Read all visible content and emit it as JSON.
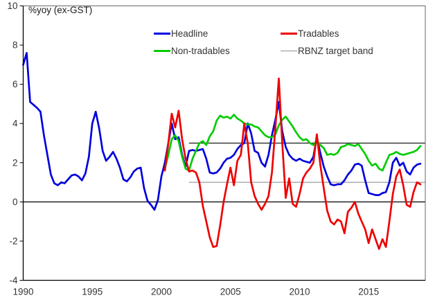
{
  "title": "%yoy (ex-GST)",
  "legend": [
    {
      "label": "Headline",
      "color": "#0000dd",
      "thickness": 3
    },
    {
      "label": "Tradables",
      "color": "#ee0000",
      "thickness": 3
    },
    {
      "label": "Non-tradables",
      "color": "#00cc00",
      "thickness": 3
    },
    {
      "label": "RBNZ target band",
      "color": "#909090",
      "thickness": 1
    }
  ],
  "chart_data": {
    "type": "line",
    "title": "%yoy (ex-GST)",
    "xlabel": "",
    "ylabel": "%yoy (ex-GST)",
    "xlim": [
      1990,
      2019.1
    ],
    "ylim": [
      -4,
      10
    ],
    "x_ticks": [
      1990,
      1995,
      2000,
      2005,
      2010,
      2015
    ],
    "y_ticks": [
      10,
      8,
      6,
      4,
      2,
      0,
      -2,
      -4
    ],
    "frequency": "quarterly",
    "grid": false,
    "legend_position": "top-inside",
    "reference_lines": [
      {
        "name": "zero-line",
        "value": 0,
        "from": 1990,
        "color": "#000000",
        "width": 1.2
      },
      {
        "name": "rbnz-target-upper",
        "value": 3,
        "from": 2002,
        "color": "#1a1a1a",
        "width": 1.2
      },
      {
        "name": "rbnz-target-lower",
        "value": 1,
        "from": 2002,
        "color": "#909090",
        "width": 1.2
      }
    ],
    "series": [
      {
        "name": "Headline",
        "color": "#0000dd",
        "start": 1990.0,
        "step": 0.25,
        "values": [
          7.0,
          7.6,
          5.1,
          4.95,
          4.8,
          4.6,
          3.4,
          2.4,
          1.4,
          0.95,
          0.85,
          1.0,
          0.95,
          1.15,
          1.35,
          1.4,
          1.3,
          1.1,
          1.45,
          2.3,
          4.0,
          4.6,
          3.75,
          2.6,
          2.1,
          2.3,
          2.55,
          2.2,
          1.75,
          1.15,
          1.05,
          1.25,
          1.55,
          1.7,
          1.75,
          0.7,
          0.05,
          -0.15,
          -0.4,
          0.1,
          1.3,
          2.0,
          3.0,
          4.0,
          3.2,
          3.3,
          2.4,
          1.8,
          2.6,
          2.65,
          2.6,
          2.65,
          2.7,
          2.2,
          1.5,
          1.45,
          1.5,
          1.7,
          2.0,
          2.2,
          2.25,
          2.4,
          2.7,
          2.9,
          3.0,
          4.0,
          3.5,
          2.6,
          2.5,
          2.0,
          1.8,
          2.4,
          3.4,
          4.2,
          5.1,
          3.6,
          2.8,
          2.4,
          2.2,
          2.1,
          2.2,
          2.1,
          2.05,
          2.0,
          2.3,
          3.3,
          2.5,
          1.8,
          1.3,
          0.9,
          0.85,
          0.9,
          0.9,
          1.1,
          1.4,
          1.6,
          1.9,
          1.95,
          1.85,
          1.1,
          0.45,
          0.4,
          0.35,
          0.35,
          0.45,
          0.5,
          1.0,
          2.0,
          2.25,
          1.85,
          2.0,
          1.55,
          1.4,
          1.75,
          1.9,
          1.95
        ]
      },
      {
        "name": "Non-tradables",
        "color": "#00cc00",
        "start": 2000.25,
        "step": 0.25,
        "values": [
          1.7,
          2.4,
          3.2,
          3.4,
          3.1,
          2.3,
          1.7,
          1.6,
          2.2,
          2.6,
          3.0,
          3.1,
          2.9,
          3.35,
          3.6,
          4.15,
          4.4,
          4.3,
          4.35,
          4.25,
          4.45,
          4.25,
          4.15,
          4.0,
          3.95,
          3.95,
          3.85,
          3.8,
          3.6,
          3.4,
          3.3,
          3.3,
          3.45,
          3.9,
          4.2,
          4.35,
          4.1,
          3.85,
          3.55,
          3.3,
          3.15,
          3.2,
          3.0,
          2.9,
          3.15,
          2.9,
          2.75,
          2.4,
          2.45,
          2.4,
          2.5,
          2.8,
          2.85,
          2.95,
          2.9,
          2.85,
          2.95,
          2.7,
          2.45,
          2.1,
          1.85,
          1.95,
          1.7,
          1.6,
          2.0,
          2.4,
          2.45,
          2.55,
          2.45,
          2.4,
          2.45,
          2.5,
          2.55,
          2.65,
          2.85
        ]
      },
      {
        "name": "Tradables",
        "color": "#ee0000",
        "start": 2000.25,
        "step": 0.25,
        "values": [
          1.6,
          3.0,
          4.5,
          3.8,
          4.65,
          3.2,
          2.2,
          1.55,
          1.6,
          1.5,
          1.0,
          -0.2,
          -1.0,
          -1.8,
          -2.3,
          -2.25,
          -1.2,
          0.0,
          0.9,
          1.75,
          0.85,
          2.1,
          2.4,
          4.0,
          3.0,
          1.0,
          0.3,
          -0.1,
          -0.4,
          -0.1,
          0.3,
          1.5,
          3.8,
          6.3,
          3.0,
          0.2,
          1.2,
          -0.1,
          -0.25,
          0.4,
          1.2,
          1.5,
          1.7,
          2.0,
          3.45,
          1.9,
          0.7,
          -0.45,
          -1.0,
          -1.15,
          -0.9,
          -1.0,
          -1.6,
          -0.5,
          -0.3,
          0.0,
          -0.6,
          -1.0,
          -1.4,
          -2.1,
          -1.4,
          -1.9,
          -2.4,
          -1.9,
          -2.3,
          -1.0,
          0.4,
          1.3,
          1.65,
          0.85,
          -0.15,
          -0.25,
          0.5,
          1.0,
          0.9
        ]
      }
    ]
  }
}
